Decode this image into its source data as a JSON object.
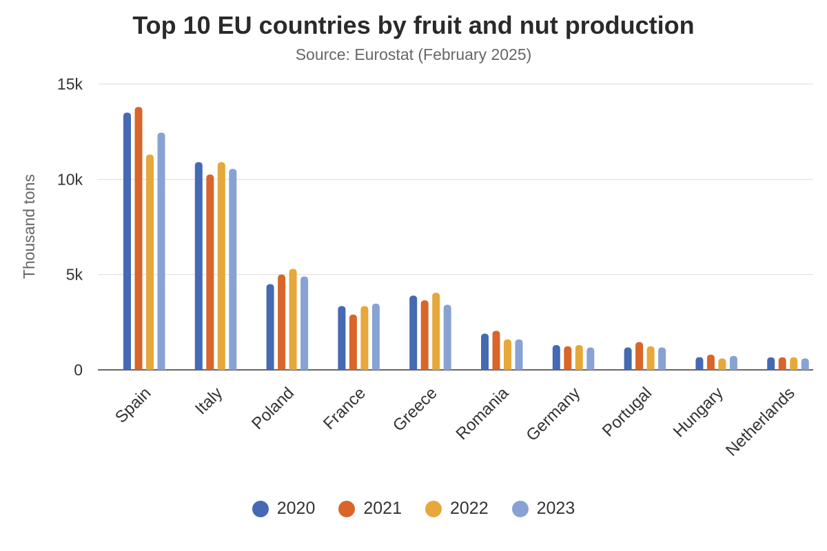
{
  "chart_data": {
    "type": "bar",
    "title": "Top 10 EU countries by fruit and nut production",
    "subtitle": "Source: Eurostat (February 2025)",
    "ylabel": "Thousand tons",
    "ylim": [
      0,
      15000
    ],
    "yticks": [
      {
        "value": 0,
        "label": "0"
      },
      {
        "value": 5000,
        "label": "5k"
      },
      {
        "value": 10000,
        "label": "10k"
      },
      {
        "value": 15000,
        "label": "15k"
      }
    ],
    "grid": true,
    "legend_position": "bottom",
    "categories": [
      "Spain",
      "Italy",
      "Poland",
      "France",
      "Greece",
      "Romania",
      "Germany",
      "Portugal",
      "Hungary",
      "Netherlands"
    ],
    "series": [
      {
        "name": "2020",
        "color": "#4569b3",
        "values": [
          13500,
          10900,
          4500,
          3350,
          3900,
          1900,
          1300,
          1180,
          670,
          660
        ]
      },
      {
        "name": "2021",
        "color": "#d9652b",
        "values": [
          13800,
          10250,
          5000,
          2900,
          3650,
          2050,
          1240,
          1460,
          800,
          660
        ]
      },
      {
        "name": "2022",
        "color": "#e6a83a",
        "values": [
          11300,
          10900,
          5300,
          3350,
          4050,
          1600,
          1300,
          1240,
          600,
          660
        ]
      },
      {
        "name": "2023",
        "color": "#88a2d4",
        "values": [
          12450,
          10550,
          4900,
          3480,
          3420,
          1600,
          1180,
          1180,
          730,
          600
        ]
      }
    ]
  }
}
